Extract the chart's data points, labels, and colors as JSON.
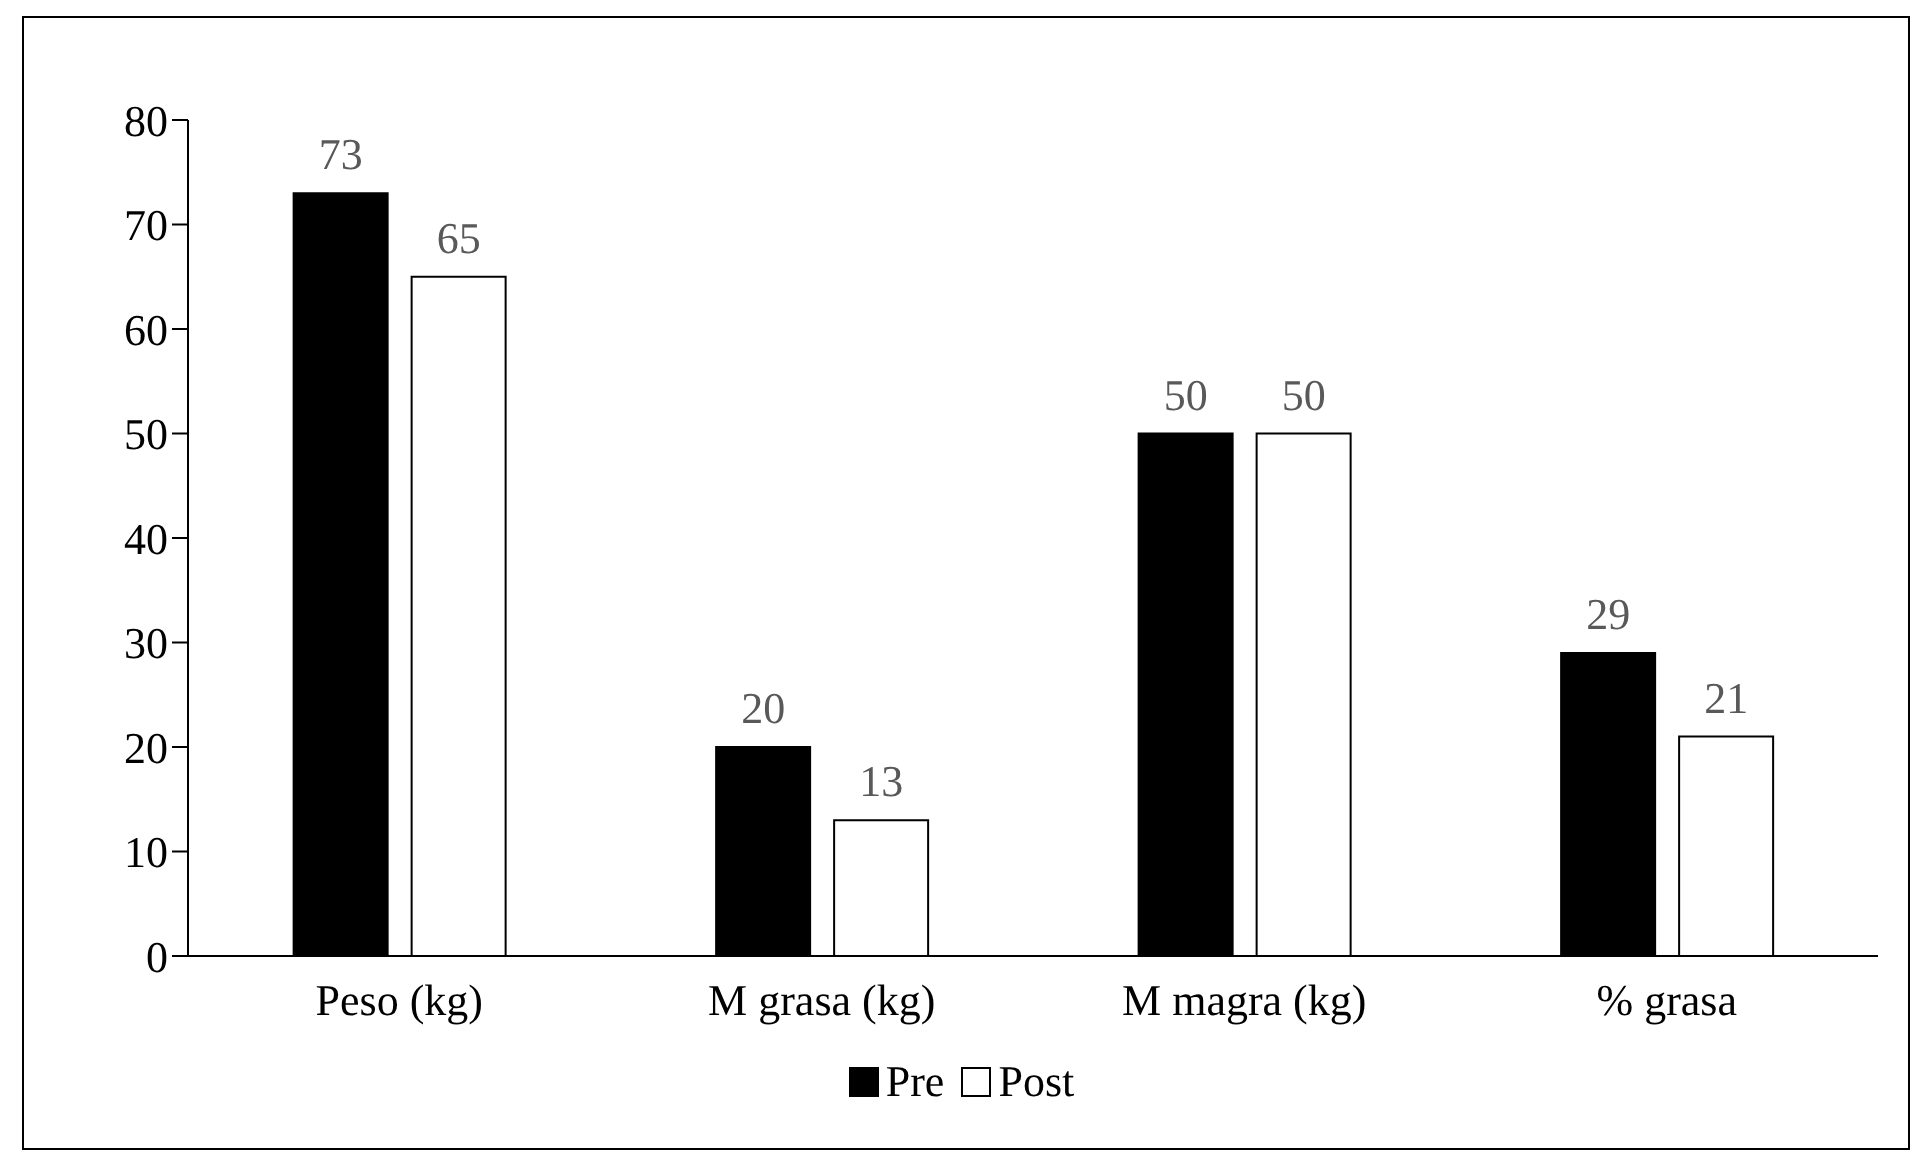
{
  "chart_data": {
    "type": "bar",
    "categories": [
      "Peso (kg)",
      "M grasa (kg)",
      "M magra (kg)",
      "% grasa"
    ],
    "series": [
      {
        "name": "Pre",
        "color": "#000000",
        "values": [
          73,
          20,
          50,
          29
        ]
      },
      {
        "name": "Post",
        "color": "#ffffff",
        "values": [
          65,
          13,
          50,
          21
        ]
      }
    ],
    "ylim": [
      0,
      80
    ],
    "yticks": [
      0,
      10,
      20,
      30,
      40,
      50,
      60,
      70,
      80
    ],
    "grid": false,
    "legend": "bottom",
    "data_labels": true
  }
}
